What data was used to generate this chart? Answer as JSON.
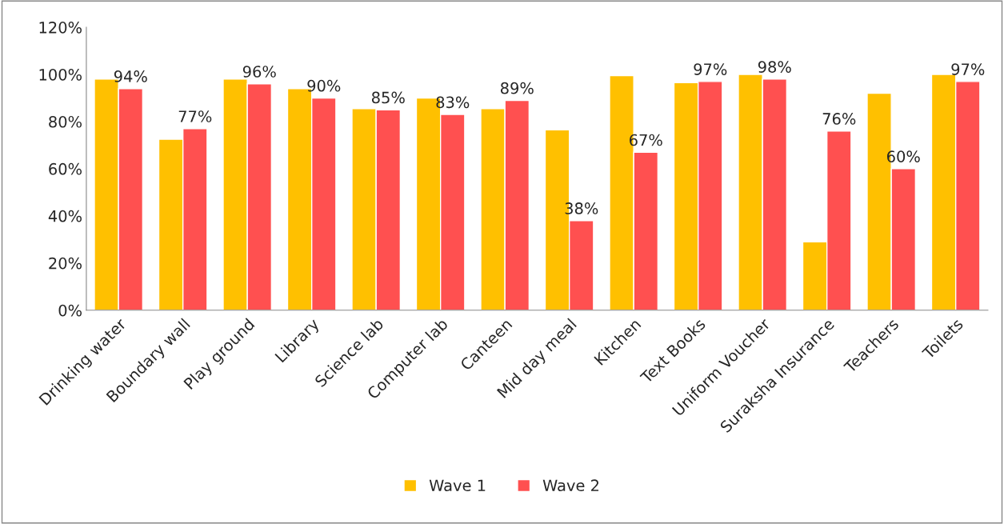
{
  "chart_data": {
    "type": "bar",
    "categories": [
      "Drinking water",
      "Boundary wall",
      "Play ground",
      "Library",
      "Science lab",
      "Computer lab",
      "Canteen",
      "Mid day meal",
      "Kitchen",
      "Text Books",
      "Uniform Voucher",
      "Suraksha Insurance",
      "Teachers",
      "Toilets"
    ],
    "series": [
      {
        "name": "Wave 1",
        "color": "#ffc000",
        "values": [
          98,
          72.5,
          98,
          94,
          85.5,
          90,
          85.5,
          76.5,
          99.5,
          96.5,
          100,
          29,
          92,
          100
        ]
      },
      {
        "name": "Wave 2",
        "color": "#ff5050",
        "values": [
          94,
          77,
          96,
          90,
          85,
          83,
          89,
          38,
          67,
          97,
          98,
          76,
          60,
          97
        ],
        "value_labels": [
          "94%",
          "77%",
          "96%",
          "90%",
          "85%",
          "83%",
          "89%",
          "38%",
          "67%",
          "97%",
          "98%",
          "76%",
          "60%",
          "97%"
        ]
      }
    ],
    "ylim": [
      0,
      120
    ],
    "yticks": [
      {
        "value": 0,
        "label": "0%"
      },
      {
        "value": 20,
        "label": "20%"
      },
      {
        "value": 40,
        "label": "40%"
      },
      {
        "value": 60,
        "label": "60%"
      },
      {
        "value": 80,
        "label": "80%"
      },
      {
        "value": 100,
        "label": "100%"
      },
      {
        "value": 120,
        "label": "120%"
      }
    ],
    "grid": false,
    "legend": "bottom"
  }
}
